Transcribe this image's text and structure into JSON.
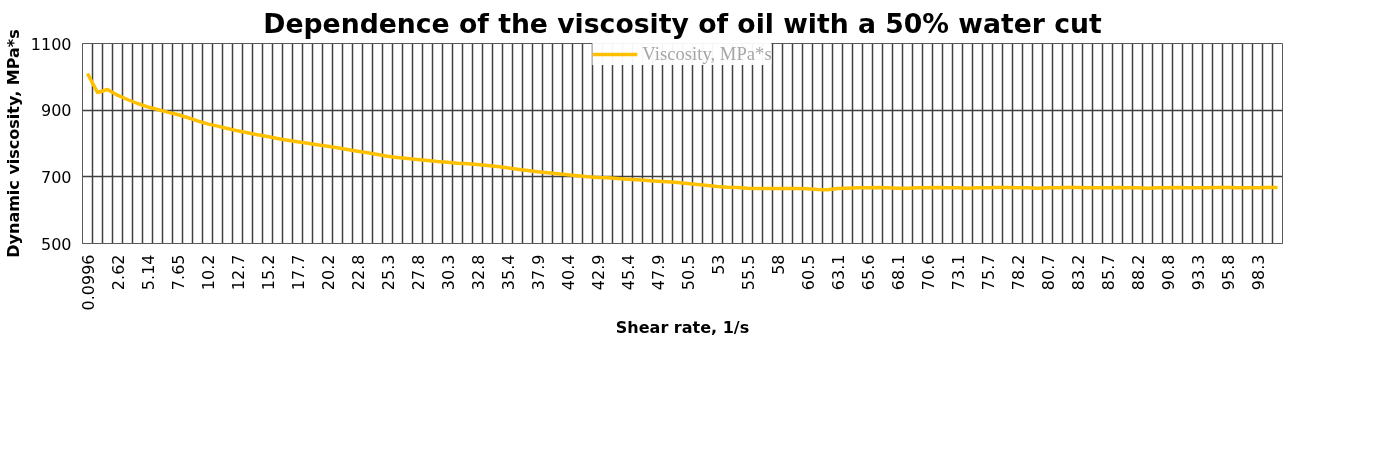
{
  "chart_data": {
    "type": "line",
    "title": "Dependence of the viscosity of oil with a 50% water cut",
    "xlabel": "Shear rate, 1/s",
    "ylabel": "Dynamic viscosity, MPa*s",
    "categories": [
      "0.0996",
      null,
      null,
      "2.62",
      null,
      null,
      "5.14",
      null,
      null,
      "7.65",
      null,
      null,
      "10.2",
      null,
      null,
      "12.7",
      null,
      null,
      "15.2",
      null,
      null,
      "17.7",
      null,
      null,
      "20.2",
      null,
      null,
      "22.8",
      null,
      null,
      "25.3",
      null,
      null,
      "27.8",
      null,
      null,
      "30.3",
      null,
      null,
      "32.8",
      null,
      null,
      "35.4",
      null,
      null,
      "37.9",
      null,
      null,
      "40.4",
      null,
      null,
      "42.9",
      null,
      null,
      "45.4",
      null,
      null,
      "47.9",
      null,
      null,
      "50.5",
      null,
      null,
      "53",
      null,
      null,
      "55.5",
      null,
      null,
      "58",
      null,
      null,
      "60.5",
      null,
      null,
      "63.1",
      null,
      null,
      "65.6",
      null,
      null,
      "68.1",
      null,
      null,
      "70.6",
      null,
      null,
      "73.1",
      null,
      null,
      "75.7",
      null,
      null,
      "78.2",
      null,
      null,
      "80.7",
      null,
      null,
      "83.2",
      null,
      null,
      "85.7",
      null,
      null,
      "88.2",
      null,
      null,
      "90.8",
      null,
      null,
      "93.3",
      null,
      null,
      "95.8",
      null,
      null,
      "98.3",
      null,
      null
    ],
    "series": [
      {
        "name": "Viscosity, MPa*s",
        "color": "#ffc000",
        "values": [
          1010,
          953,
          962,
          945,
          932,
          920,
          910,
          902,
          894,
          887,
          878,
          868,
          859,
          852,
          845,
          838,
          832,
          826,
          821,
          815,
          810,
          805,
          801,
          796,
          792,
          787,
          782,
          777,
          772,
          767,
          762,
          758,
          755,
          752,
          749,
          746,
          744,
          741,
          739,
          737,
          734,
          731,
          727,
          723,
          719,
          715,
          712,
          709,
          706,
          703,
          700,
          698,
          697,
          695,
          693,
          691,
          689,
          687,
          685,
          683,
          680,
          677,
          674,
          671,
          669,
          668,
          666,
          665,
          665,
          665,
          665,
          665,
          664,
          662,
          661,
          665,
          666,
          667,
          667,
          668,
          667,
          666,
          666,
          667,
          667,
          668,
          667,
          667,
          666,
          667,
          667,
          668,
          668,
          667,
          667,
          666,
          667,
          667,
          668,
          668,
          667,
          667,
          667,
          668,
          667,
          667,
          666,
          667,
          667,
          668,
          667,
          667,
          667,
          668,
          668,
          667,
          667,
          667,
          668,
          668
        ]
      }
    ],
    "ylim": [
      500,
      1100
    ],
    "yticks": [
      500,
      700,
      900,
      1100
    ],
    "grid": true,
    "legend": "top",
    "line_style": "solid",
    "marker": "none"
  }
}
